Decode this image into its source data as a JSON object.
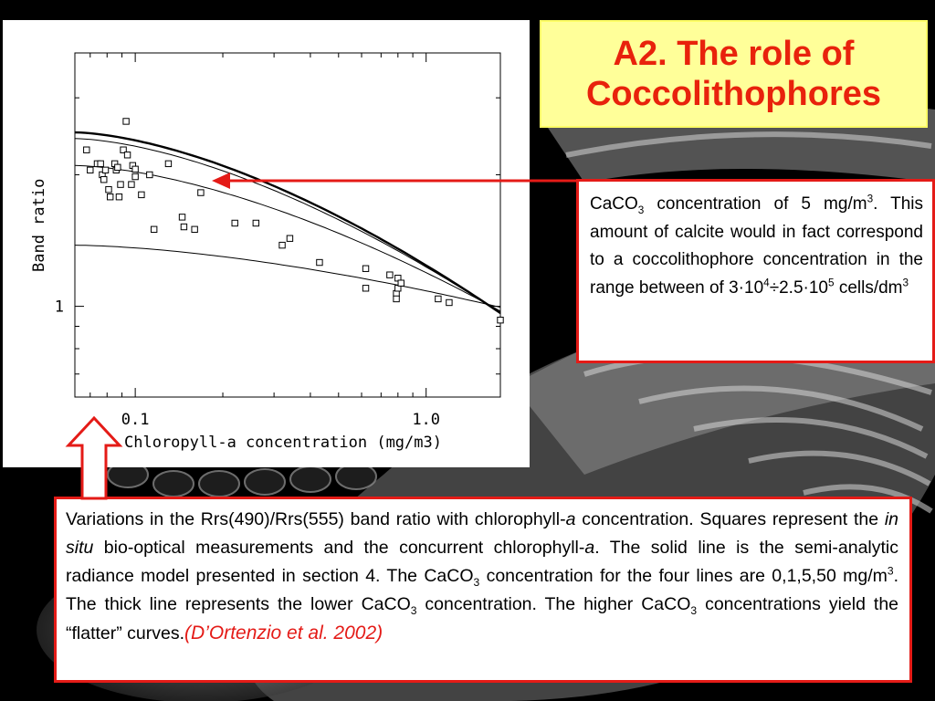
{
  "slide_title": "A2. The role of\nCoccolithophores",
  "note": {
    "p1": "CaCO",
    "p1_sub": "3",
    "p2": " concentration of 5 mg/m",
    "p2_sup": "3",
    "p3": ". This amount of calcite would in fact correspond to a coccolithophore concentration in the range between of 3·10",
    "p3_sup": "4",
    "p4": "÷2.5·10",
    "p4_sup": "5",
    "p5": " cells/dm",
    "p5_sup": "3"
  },
  "caption": {
    "s1": "Variations in the Rrs(490)/Rrs(555) band ratio with chlorophyll-",
    "s1_em": "a",
    "s2": " concentration. Squares represent the ",
    "s2_em": "in situ",
    "s3": " bio-optical measurements and the concurrent chlorophyll-",
    "s3_em": "a",
    "s4": ". The solid line is the semi-analytic radiance model presented in section 4. The CaCO",
    "s4_sub": "3",
    "s5": " concentration for the four lines are 0,1,5,50 mg/m",
    "s5_sup": "3",
    "s6": ". The thick line represents the lower CaCO",
    "s6_sub": "3",
    "s7": " concentration. The higher CaCO",
    "s7_sub": "3",
    "s8": " concentrations yield the “flatter” curves.",
    "ref_open": "(",
    "ref_text": "D’Ortenzio et al. 2002",
    "ref_close": ")"
  },
  "colors": {
    "title_bg": "#ffff99",
    "title_text": "#e8220c",
    "box_border": "#e41b17",
    "arrow": "#e41b17"
  },
  "chart_data": {
    "type": "scatter",
    "xlabel": "Chloropyll-a concentration (mg/m3)",
    "ylabel": "Band ratio",
    "xscale": "log",
    "yscale": "log",
    "xlim": [
      0.062,
      1.8
    ],
    "ylim": [
      0.62,
      3.8
    ],
    "x_ticklabels": [
      {
        "value": 0.1,
        "label": "0.1"
      },
      {
        "value": 1.0,
        "label": "1.0"
      }
    ],
    "y_ticklabels": [
      {
        "value": 1,
        "label": "1"
      }
    ],
    "grid": false,
    "points": [
      [
        0.068,
        2.28
      ],
      [
        0.07,
        2.05
      ],
      [
        0.074,
        2.12
      ],
      [
        0.076,
        2.12
      ],
      [
        0.077,
        2.0
      ],
      [
        0.078,
        1.95
      ],
      [
        0.079,
        2.05
      ],
      [
        0.081,
        1.85
      ],
      [
        0.082,
        1.78
      ],
      [
        0.085,
        2.12
      ],
      [
        0.086,
        2.05
      ],
      [
        0.087,
        2.08
      ],
      [
        0.088,
        1.78
      ],
      [
        0.089,
        1.9
      ],
      [
        0.091,
        2.28
      ],
      [
        0.093,
        2.65
      ],
      [
        0.094,
        2.22
      ],
      [
        0.097,
        1.9
      ],
      [
        0.098,
        2.1
      ],
      [
        0.1,
        1.98
      ],
      [
        0.1,
        2.06
      ],
      [
        0.105,
        1.8
      ],
      [
        0.112,
        2.0
      ],
      [
        0.116,
        1.5
      ],
      [
        0.13,
        2.12
      ],
      [
        0.145,
        1.6
      ],
      [
        0.147,
        1.52
      ],
      [
        0.16,
        1.5
      ],
      [
        0.168,
        1.82
      ],
      [
        0.22,
        1.55
      ],
      [
        0.26,
        1.55
      ],
      [
        0.32,
        1.38
      ],
      [
        0.34,
        1.43
      ],
      [
        0.43,
        1.26
      ],
      [
        0.62,
        1.22
      ],
      [
        0.62,
        1.1
      ],
      [
        0.75,
        1.18
      ],
      [
        0.79,
        1.07
      ],
      [
        0.79,
        1.04
      ],
      [
        0.8,
        1.16
      ],
      [
        0.8,
        1.1
      ],
      [
        0.82,
        1.13
      ],
      [
        1.1,
        1.04
      ],
      [
        1.2,
        1.02
      ],
      [
        1.8,
        0.93
      ]
    ],
    "series": [
      {
        "caco3": 0,
        "y0": 2.5,
        "y1": 0.965,
        "thick": true
      },
      {
        "caco3": 1,
        "y0": 2.42,
        "y1": 0.965,
        "thick": false
      },
      {
        "caco3": 5,
        "y0": 2.1,
        "y1": 0.975,
        "thick": false
      },
      {
        "caco3": 50,
        "y0": 1.38,
        "y1": 0.995,
        "thick": false
      }
    ]
  }
}
